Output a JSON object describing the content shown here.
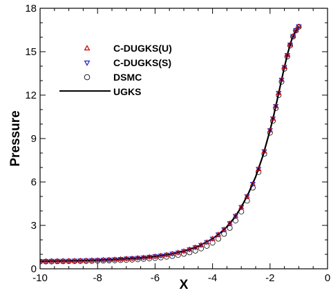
{
  "chart_data": {
    "type": "scatter",
    "title": "",
    "xlabel": "X",
    "ylabel": "Pressure",
    "xlim": [
      -10,
      0
    ],
    "ylim": [
      0,
      18
    ],
    "xticks": [
      "-10",
      "-8",
      "-6",
      "-4",
      "-2",
      "0"
    ],
    "yticks": [
      "0",
      "3",
      "6",
      "9",
      "12",
      "15",
      "18"
    ],
    "grid": false,
    "legend_position": "top-left",
    "series": [
      {
        "name": "C-DUGKS(U)",
        "marker": "triangle-up",
        "color": "#cc0000",
        "x": [
          -10.0,
          -9.8,
          -9.6,
          -9.4,
          -9.2,
          -9.0,
          -8.8,
          -8.6,
          -8.4,
          -8.2,
          -8.0,
          -7.8,
          -7.6,
          -7.4,
          -7.2,
          -7.0,
          -6.8,
          -6.6,
          -6.4,
          -6.2,
          -6.0,
          -5.8,
          -5.6,
          -5.4,
          -5.2,
          -5.0,
          -4.8,
          -4.6,
          -4.4,
          -4.2,
          -4.0,
          -3.8,
          -3.6,
          -3.4,
          -3.2,
          -3.0,
          -2.8,
          -2.6,
          -2.4,
          -2.2,
          -2.0,
          -1.9,
          -1.8,
          -1.7,
          -1.6,
          -1.5,
          -1.4,
          -1.3,
          -1.2,
          -1.1,
          -1.0
        ],
        "y": [
          0.53,
          0.53,
          0.54,
          0.54,
          0.55,
          0.55,
          0.56,
          0.57,
          0.58,
          0.59,
          0.6,
          0.62,
          0.63,
          0.65,
          0.67,
          0.7,
          0.72,
          0.75,
          0.78,
          0.82,
          0.86,
          0.91,
          0.97,
          1.04,
          1.12,
          1.22,
          1.34,
          1.48,
          1.64,
          1.84,
          2.08,
          2.37,
          2.72,
          3.14,
          3.65,
          4.26,
          5.0,
          5.86,
          6.9,
          8.12,
          9.57,
          10.38,
          11.24,
          12.15,
          13.06,
          13.94,
          14.76,
          15.49,
          16.08,
          16.48,
          16.75
        ]
      },
      {
        "name": "C-DUGKS(S)",
        "marker": "triangle-down",
        "color": "#2222cc",
        "x": [
          -10.0,
          -9.8,
          -9.6,
          -9.4,
          -9.2,
          -9.0,
          -8.8,
          -8.6,
          -8.4,
          -8.2,
          -8.0,
          -7.8,
          -7.6,
          -7.4,
          -7.2,
          -7.0,
          -6.8,
          -6.6,
          -6.4,
          -6.2,
          -6.0,
          -5.8,
          -5.6,
          -5.4,
          -5.2,
          -5.0,
          -4.8,
          -4.6,
          -4.4,
          -4.2,
          -4.0,
          -3.8,
          -3.6,
          -3.4,
          -3.2,
          -3.0,
          -2.8,
          -2.6,
          -2.4,
          -2.2,
          -2.0,
          -1.9,
          -1.8,
          -1.7,
          -1.6,
          -1.5,
          -1.4,
          -1.3,
          -1.2,
          -1.1,
          -1.0
        ],
        "y": [
          0.53,
          0.53,
          0.54,
          0.54,
          0.55,
          0.55,
          0.56,
          0.57,
          0.58,
          0.59,
          0.6,
          0.62,
          0.63,
          0.65,
          0.67,
          0.7,
          0.72,
          0.75,
          0.78,
          0.82,
          0.86,
          0.91,
          0.97,
          1.04,
          1.12,
          1.22,
          1.34,
          1.48,
          1.64,
          1.84,
          2.08,
          2.37,
          2.72,
          3.14,
          3.65,
          4.26,
          5.0,
          5.86,
          6.9,
          8.12,
          9.57,
          10.38,
          11.24,
          12.15,
          13.06,
          13.94,
          14.76,
          15.49,
          16.08,
          16.48,
          16.75
        ]
      },
      {
        "name": "DSMC",
        "marker": "circle-open",
        "color": "#000000",
        "x": [
          -10.0,
          -9.8,
          -9.6,
          -9.4,
          -9.2,
          -9.0,
          -8.8,
          -8.6,
          -8.4,
          -8.2,
          -8.0,
          -7.8,
          -7.6,
          -7.4,
          -7.2,
          -7.0,
          -6.8,
          -6.6,
          -6.4,
          -6.2,
          -6.0,
          -5.8,
          -5.6,
          -5.4,
          -5.2,
          -5.0,
          -4.8,
          -4.6,
          -4.4,
          -4.2,
          -4.0,
          -3.8,
          -3.6,
          -3.4,
          -3.2,
          -3.0,
          -2.8,
          -2.6,
          -2.4,
          -2.2,
          -2.0,
          -1.9,
          -1.8,
          -1.7,
          -1.6,
          -1.5,
          -1.4,
          -1.3,
          -1.2,
          -1.1,
          -1.0
        ],
        "y": [
          0.5,
          0.5,
          0.5,
          0.51,
          0.51,
          0.52,
          0.52,
          0.53,
          0.53,
          0.54,
          0.55,
          0.56,
          0.57,
          0.58,
          0.6,
          0.61,
          0.63,
          0.65,
          0.68,
          0.71,
          0.74,
          0.78,
          0.83,
          0.88,
          0.95,
          1.03,
          1.13,
          1.25,
          1.4,
          1.58,
          1.8,
          2.07,
          2.41,
          2.82,
          3.33,
          3.95,
          4.7,
          5.6,
          6.68,
          7.94,
          9.4,
          10.22,
          11.1,
          12.0,
          12.92,
          13.82,
          14.66,
          15.42,
          16.04,
          16.46,
          16.72
        ]
      },
      {
        "name": "UGKS",
        "marker": "line",
        "color": "#000000",
        "x": [
          -10.0,
          -9.5,
          -9.0,
          -8.5,
          -8.0,
          -7.5,
          -7.0,
          -6.5,
          -6.0,
          -5.5,
          -5.0,
          -4.5,
          -4.0,
          -3.75,
          -3.5,
          -3.25,
          -3.0,
          -2.75,
          -2.5,
          -2.25,
          -2.0,
          -1.875,
          -1.75,
          -1.625,
          -1.5,
          -1.375,
          -1.25,
          -1.125,
          -1.0
        ],
        "y": [
          0.53,
          0.54,
          0.55,
          0.57,
          0.6,
          0.64,
          0.7,
          0.76,
          0.86,
          1.0,
          1.22,
          1.55,
          2.08,
          2.45,
          2.91,
          3.5,
          4.26,
          5.22,
          6.36,
          7.8,
          9.57,
          10.58,
          11.68,
          12.82,
          13.94,
          14.96,
          15.82,
          16.38,
          16.75
        ]
      }
    ]
  }
}
